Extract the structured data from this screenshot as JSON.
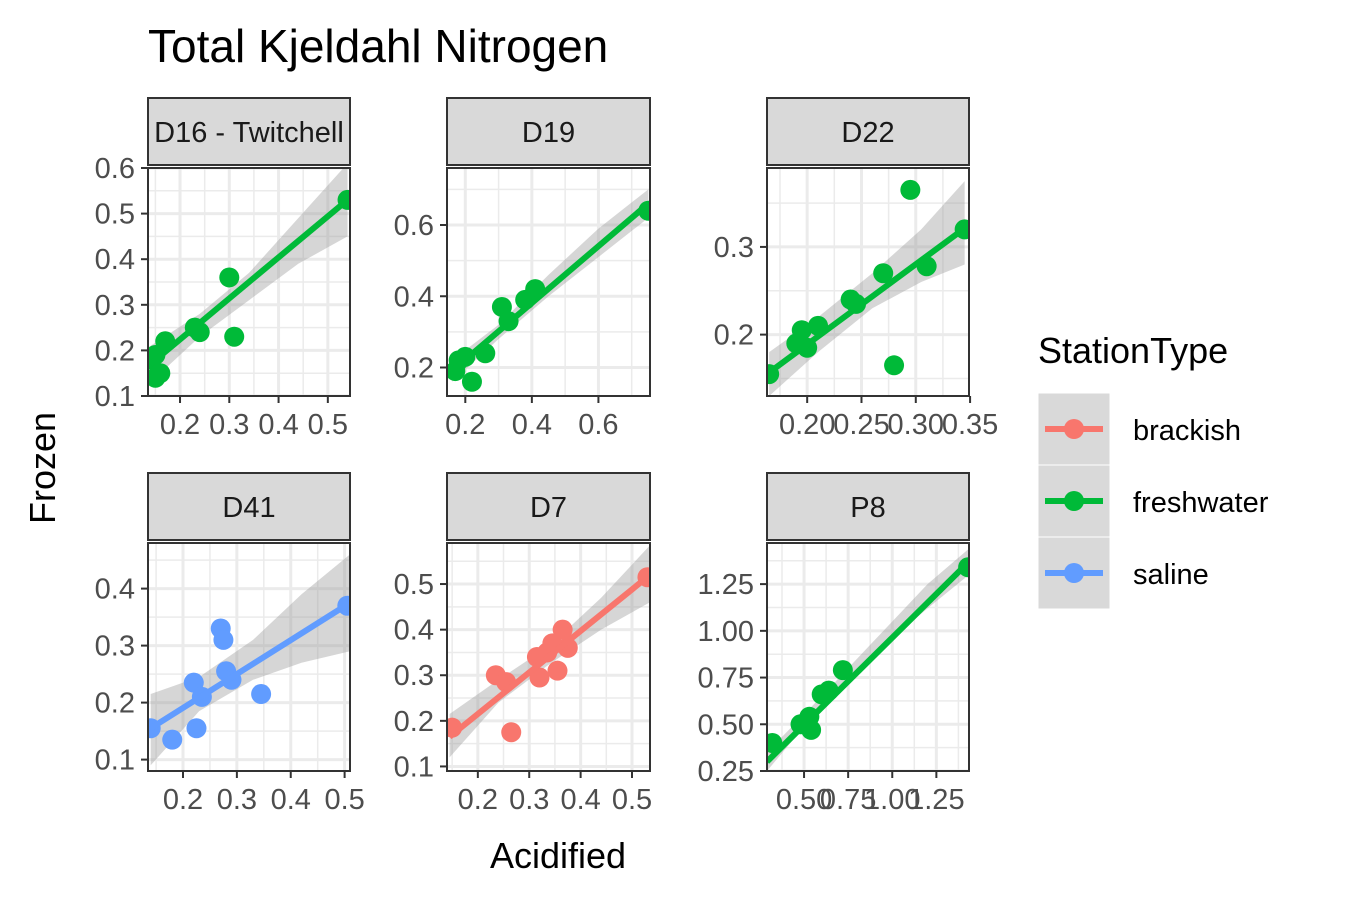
{
  "chart_data": {
    "type": "scatter",
    "title": "Total Kjeldahl Nitrogen",
    "xlabel": "Acidified",
    "ylabel": "Frozen",
    "legend": {
      "title": "StationType",
      "position": "right",
      "entries": [
        {
          "name": "brackish",
          "color": "#F8766D"
        },
        {
          "name": "freshwater",
          "color": "#00BA38"
        },
        {
          "name": "saline",
          "color": "#619CFF"
        }
      ]
    },
    "grid": true,
    "smooth": "linear fit with confidence band",
    "panels": [
      {
        "name": "D16 - Twitchell",
        "strip_label": "D16 - Twitchell",
        "station_type": "freshwater",
        "xlim": [
          0.135,
          0.545
        ],
        "ylim": [
          0.1,
          0.6
        ],
        "xticks": [
          {
            "v": 0.2,
            "label": "0.2"
          },
          {
            "v": 0.3,
            "label": "0.3"
          },
          {
            "v": 0.4,
            "label": "0.4"
          },
          {
            "v": 0.5,
            "label": "0.5"
          }
        ],
        "yticks": [
          {
            "v": 0.1,
            "label": "0.1"
          },
          {
            "v": 0.2,
            "label": "0.2"
          },
          {
            "v": 0.3,
            "label": "0.3"
          },
          {
            "v": 0.4,
            "label": "0.4"
          },
          {
            "v": 0.5,
            "label": "0.5"
          },
          {
            "v": 0.6,
            "label": "0.6"
          }
        ],
        "points": [
          [
            0.14,
            0.18
          ],
          [
            0.15,
            0.19
          ],
          [
            0.15,
            0.14
          ],
          [
            0.16,
            0.15
          ],
          [
            0.17,
            0.22
          ],
          [
            0.23,
            0.25
          ],
          [
            0.24,
            0.24
          ],
          [
            0.3,
            0.36
          ],
          [
            0.31,
            0.23
          ],
          [
            0.54,
            0.53
          ]
        ],
        "fit": [
          [
            0.14,
            0.17
          ],
          [
            0.54,
            0.53
          ]
        ],
        "band": [
          [
            0.14,
            0.13,
            0.21
          ],
          [
            0.24,
            0.23,
            0.28
          ],
          [
            0.34,
            0.31,
            0.37
          ],
          [
            0.44,
            0.39,
            0.49
          ],
          [
            0.54,
            0.45,
            0.61
          ]
        ]
      },
      {
        "name": "D19",
        "strip_label": "D19",
        "station_type": "freshwater",
        "xlim": [
          0.145,
          0.755
        ],
        "ylim": [
          0.12,
          0.76
        ],
        "xticks": [
          {
            "v": 0.2,
            "label": "0.2"
          },
          {
            "v": 0.4,
            "label": "0.4"
          },
          {
            "v": 0.6,
            "label": "0.6"
          }
        ],
        "yticks": [
          {
            "v": 0.2,
            "label": "0.2"
          },
          {
            "v": 0.4,
            "label": "0.4"
          },
          {
            "v": 0.6,
            "label": "0.6"
          }
        ],
        "points": [
          [
            0.17,
            0.19
          ],
          [
            0.18,
            0.22
          ],
          [
            0.2,
            0.23
          ],
          [
            0.22,
            0.16
          ],
          [
            0.26,
            0.24
          ],
          [
            0.31,
            0.37
          ],
          [
            0.33,
            0.33
          ],
          [
            0.38,
            0.39
          ],
          [
            0.41,
            0.42
          ],
          [
            0.75,
            0.64
          ]
        ],
        "fit": [
          [
            0.16,
            0.19
          ],
          [
            0.75,
            0.66
          ]
        ],
        "band": [
          [
            0.16,
            0.16,
            0.22
          ],
          [
            0.3,
            0.28,
            0.32
          ],
          [
            0.45,
            0.4,
            0.46
          ],
          [
            0.6,
            0.51,
            0.59
          ],
          [
            0.75,
            0.62,
            0.7
          ]
        ]
      },
      {
        "name": "D22",
        "strip_label": "D22",
        "station_type": "freshwater",
        "xlim": [
          0.163,
          0.349
        ],
        "ylim": [
          0.13,
          0.39
        ],
        "xticks": [
          {
            "v": 0.2,
            "label": "0.20"
          },
          {
            "v": 0.25,
            "label": "0.25"
          },
          {
            "v": 0.3,
            "label": "0.30"
          },
          {
            "v": 0.35,
            "label": "0.35"
          }
        ],
        "yticks": [
          {
            "v": 0.2,
            "label": "0.2"
          },
          {
            "v": 0.3,
            "label": "0.3"
          }
        ],
        "points": [
          [
            0.165,
            0.155
          ],
          [
            0.19,
            0.19
          ],
          [
            0.195,
            0.205
          ],
          [
            0.2,
            0.185
          ],
          [
            0.21,
            0.21
          ],
          [
            0.24,
            0.24
          ],
          [
            0.245,
            0.235
          ],
          [
            0.27,
            0.27
          ],
          [
            0.28,
            0.165
          ],
          [
            0.295,
            0.365
          ],
          [
            0.31,
            0.278
          ],
          [
            0.345,
            0.32
          ]
        ],
        "fit": [
          [
            0.163,
            0.155
          ],
          [
            0.349,
            0.325
          ]
        ],
        "band": [
          [
            0.165,
            0.13,
            0.18
          ],
          [
            0.21,
            0.18,
            0.22
          ],
          [
            0.26,
            0.23,
            0.27
          ],
          [
            0.305,
            0.26,
            0.32
          ],
          [
            0.345,
            0.28,
            0.375
          ]
        ]
      },
      {
        "name": "D41",
        "strip_label": "D41",
        "station_type": "saline",
        "xlim": [
          0.135,
          0.51
        ],
        "ylim": [
          0.08,
          0.48
        ],
        "xticks": [
          {
            "v": 0.2,
            "label": "0.2"
          },
          {
            "v": 0.3,
            "label": "0.3"
          },
          {
            "v": 0.4,
            "label": "0.4"
          },
          {
            "v": 0.5,
            "label": "0.5"
          }
        ],
        "yticks": [
          {
            "v": 0.1,
            "label": "0.1"
          },
          {
            "v": 0.2,
            "label": "0.2"
          },
          {
            "v": 0.3,
            "label": "0.3"
          },
          {
            "v": 0.4,
            "label": "0.4"
          }
        ],
        "points": [
          [
            0.14,
            0.155
          ],
          [
            0.18,
            0.135
          ],
          [
            0.22,
            0.235
          ],
          [
            0.225,
            0.155
          ],
          [
            0.235,
            0.21
          ],
          [
            0.27,
            0.33
          ],
          [
            0.275,
            0.31
          ],
          [
            0.28,
            0.255
          ],
          [
            0.29,
            0.24
          ],
          [
            0.345,
            0.215
          ],
          [
            0.505,
            0.37
          ]
        ],
        "fit": [
          [
            0.14,
            0.155
          ],
          [
            0.51,
            0.375
          ]
        ],
        "band": [
          [
            0.14,
            0.09,
            0.215
          ],
          [
            0.23,
            0.185,
            0.245
          ],
          [
            0.33,
            0.24,
            0.31
          ],
          [
            0.42,
            0.27,
            0.39
          ],
          [
            0.51,
            0.29,
            0.46
          ]
        ]
      },
      {
        "name": "D7",
        "strip_label": "D7",
        "station_type": "brackish",
        "xlim": [
          0.14,
          0.535
        ],
        "ylim": [
          0.09,
          0.59
        ],
        "xticks": [
          {
            "v": 0.2,
            "label": "0.2"
          },
          {
            "v": 0.3,
            "label": "0.3"
          },
          {
            "v": 0.4,
            "label": "0.4"
          },
          {
            "v": 0.5,
            "label": "0.5"
          }
        ],
        "yticks": [
          {
            "v": 0.1,
            "label": "0.1"
          },
          {
            "v": 0.2,
            "label": "0.2"
          },
          {
            "v": 0.3,
            "label": "0.3"
          },
          {
            "v": 0.4,
            "label": "0.4"
          },
          {
            "v": 0.5,
            "label": "0.5"
          }
        ],
        "points": [
          [
            0.15,
            0.185
          ],
          [
            0.235,
            0.3
          ],
          [
            0.255,
            0.285
          ],
          [
            0.265,
            0.175
          ],
          [
            0.315,
            0.34
          ],
          [
            0.32,
            0.295
          ],
          [
            0.335,
            0.35
          ],
          [
            0.345,
            0.37
          ],
          [
            0.355,
            0.31
          ],
          [
            0.365,
            0.4
          ],
          [
            0.375,
            0.36
          ],
          [
            0.53,
            0.515
          ]
        ],
        "fit": [
          [
            0.145,
            0.165
          ],
          [
            0.535,
            0.52
          ]
        ],
        "band": [
          [
            0.145,
            0.12,
            0.215
          ],
          [
            0.24,
            0.24,
            0.29
          ],
          [
            0.34,
            0.325,
            0.365
          ],
          [
            0.44,
            0.4,
            0.47
          ],
          [
            0.535,
            0.46,
            0.585
          ]
        ]
      },
      {
        "name": "P8",
        "strip_label": "P8",
        "station_type": "freshwater",
        "xlim": [
          0.29,
          1.435
        ],
        "ylim": [
          0.25,
          1.47
        ],
        "xticks": [
          {
            "v": 0.5,
            "label": "0.50"
          },
          {
            "v": 0.75,
            "label": "0.75"
          },
          {
            "v": 1.0,
            "label": "1.00"
          },
          {
            "v": 1.25,
            "label": "1.25"
          }
        ],
        "yticks": [
          {
            "v": 0.25,
            "label": "0.25"
          },
          {
            "v": 0.5,
            "label": "0.50"
          },
          {
            "v": 0.75,
            "label": "0.75"
          },
          {
            "v": 1.0,
            "label": "1.00"
          },
          {
            "v": 1.25,
            "label": "1.25"
          }
        ],
        "points": [
          [
            0.32,
            0.4
          ],
          [
            0.48,
            0.5
          ],
          [
            0.52,
            0.52
          ],
          [
            0.53,
            0.54
          ],
          [
            0.54,
            0.47
          ],
          [
            0.6,
            0.66
          ],
          [
            0.64,
            0.68
          ],
          [
            0.72,
            0.79
          ],
          [
            1.43,
            1.34
          ]
        ],
        "fit": [
          [
            0.29,
            0.3
          ],
          [
            1.435,
            1.37
          ]
        ],
        "band": [
          [
            0.29,
            0.25,
            0.35
          ],
          [
            0.6,
            0.6,
            0.65
          ],
          [
            0.9,
            0.88,
            0.95
          ],
          [
            1.2,
            1.12,
            1.25
          ],
          [
            1.435,
            1.3,
            1.44
          ]
        ]
      }
    ]
  }
}
